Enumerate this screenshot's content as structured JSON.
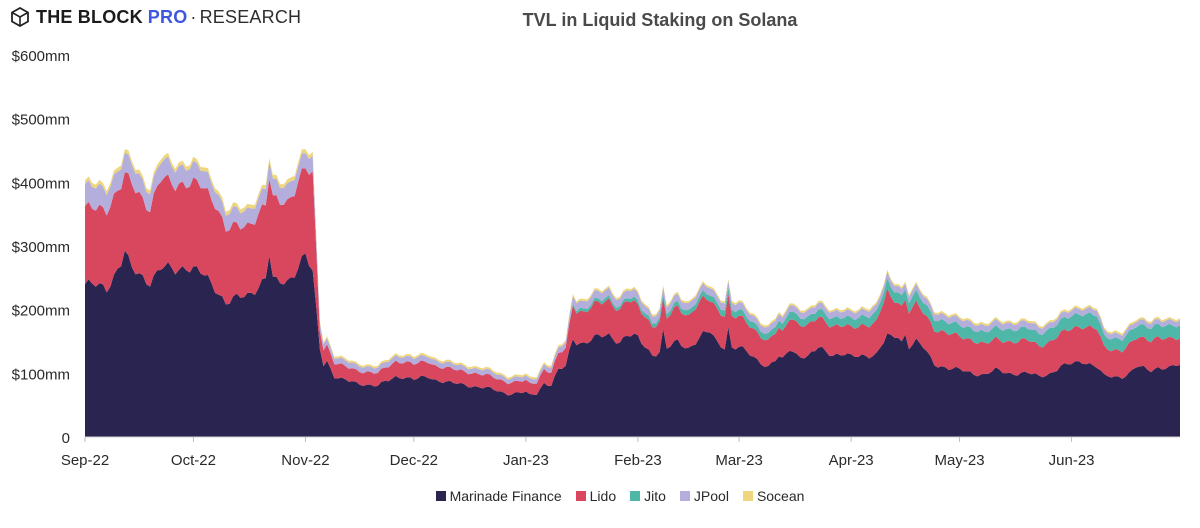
{
  "header": {
    "brand_main": "THE BLOCK",
    "brand_pro": "PRO",
    "brand_sep": "·",
    "brand_research": "RESEARCH",
    "logo_icon": "block-cube-icon"
  },
  "chart_data": {
    "type": "area",
    "stacked": true,
    "title": "TVL in Liquid Staking on Solana",
    "xlabel": "",
    "ylabel": "",
    "ylim": [
      0,
      600
    ],
    "yticks": [
      {
        "value": 0,
        "label": "0"
      },
      {
        "value": 100,
        "label": "$100mm"
      },
      {
        "value": 200,
        "label": "$200mm"
      },
      {
        "value": 300,
        "label": "$300mm"
      },
      {
        "value": 400,
        "label": "$400mm"
      },
      {
        "value": 500,
        "label": "$500mm"
      },
      {
        "value": 600,
        "label": "$600mm"
      }
    ],
    "grid": false,
    "legend_position": "bottom-center",
    "x_day_count": 303,
    "x_ticks": [
      {
        "label": "Sep-22",
        "day": 0
      },
      {
        "label": "Oct-22",
        "day": 30
      },
      {
        "label": "Nov-22",
        "day": 61
      },
      {
        "label": "Dec-22",
        "day": 91
      },
      {
        "label": "Jan-23",
        "day": 122
      },
      {
        "label": "Feb-23",
        "day": 153
      },
      {
        "label": "Mar-23",
        "day": 181
      },
      {
        "label": "Apr-23",
        "day": 212
      },
      {
        "label": "May-23",
        "day": 242
      },
      {
        "label": "Jun-23",
        "day": 273
      }
    ],
    "x": [
      0,
      6,
      11,
      13,
      18,
      21,
      25,
      28,
      32,
      36,
      39,
      45,
      50,
      53,
      56,
      61,
      63,
      65,
      66,
      67,
      69,
      71,
      75,
      81,
      86,
      88,
      91,
      95,
      97,
      101,
      111,
      117,
      122,
      123,
      125,
      127,
      129,
      131,
      133,
      135,
      136,
      138,
      141,
      145,
      148,
      150,
      153,
      157,
      161,
      164,
      167,
      169,
      171,
      173,
      175,
      178,
      181,
      184,
      189,
      192,
      193,
      195,
      197,
      200,
      203,
      207,
      210,
      212,
      215,
      219,
      222,
      223,
      225,
      227,
      230,
      232,
      235,
      239,
      242,
      246,
      249,
      252,
      256,
      261,
      264,
      267,
      270,
      273,
      276,
      280,
      282,
      284,
      287,
      289,
      291,
      295,
      297,
      300,
      302
    ],
    "series": [
      {
        "name": "Marinade Finance",
        "color": "#2a2450",
        "values": [
          240,
          234,
          285,
          262,
          245,
          265,
          262,
          270,
          257,
          235,
          212,
          222,
          250,
          242,
          245,
          285,
          255,
          140,
          115,
          120,
          95,
          90,
          85,
          80,
          95,
          95,
          90,
          95,
          90,
          85,
          77,
          68,
          70,
          65,
          68,
          85,
          82,
          105,
          110,
          155,
          150,
          148,
          155,
          160,
          150,
          160,
          155,
          130,
          138,
          150,
          140,
          150,
          160,
          165,
          148,
          140,
          140,
          130,
          110,
          125,
          120,
          140,
          130,
          125,
          140,
          130,
          130,
          125,
          128,
          130,
          158,
          155,
          160,
          140,
          150,
          140,
          115,
          108,
          105,
          100,
          98,
          105,
          100,
          100,
          95,
          100,
          110,
          115,
          120,
          110,
          95,
          95,
          95,
          100,
          110,
          105,
          110,
          108,
          112
        ],
        "peaks": {
          "11": 290,
          "51": 288,
          "160": 165,
          "178": 172,
          "227": 162
        }
      },
      {
        "name": "Lido",
        "color": "#d9475f",
        "values": [
          118,
          125,
          120,
          135,
          115,
          140,
          135,
          130,
          138,
          135,
          115,
          110,
          115,
          130,
          125,
          135,
          155,
          30,
          25,
          25,
          22,
          22,
          20,
          20,
          24,
          24,
          24,
          24,
          22,
          22,
          20,
          18,
          18,
          18,
          18,
          22,
          20,
          25,
          28,
          55,
          50,
          48,
          52,
          55,
          50,
          55,
          50,
          45,
          48,
          55,
          50,
          55,
          55,
          50,
          52,
          50,
          48,
          45,
          40,
          45,
          42,
          50,
          50,
          48,
          48,
          45,
          45,
          45,
          48,
          50,
          70,
          60,
          55,
          55,
          58,
          55,
          55,
          55,
          52,
          52,
          48,
          48,
          50,
          52,
          48,
          50,
          52,
          55,
          55,
          60,
          45,
          42,
          42,
          45,
          45,
          48,
          48,
          45,
          42
        ]
      },
      {
        "name": "Jito",
        "color": "#4fb7a7",
        "values": [
          0,
          0,
          0,
          0,
          0,
          0,
          0,
          0,
          0,
          0,
          0,
          0,
          0,
          0,
          0,
          0,
          0,
          0,
          0,
          0,
          0,
          0,
          0,
          0,
          0,
          0,
          0,
          0,
          0,
          0,
          0,
          0,
          0,
          0,
          0,
          0,
          0,
          0,
          0,
          3,
          4,
          5,
          5,
          5,
          5,
          5,
          6,
          6,
          7,
          7,
          8,
          8,
          9,
          9,
          9,
          10,
          10,
          10,
          10,
          11,
          11,
          12,
          12,
          12,
          12,
          13,
          13,
          14,
          14,
          15,
          16,
          16,
          16,
          16,
          17,
          17,
          17,
          17,
          18,
          18,
          18,
          18,
          19,
          19,
          19,
          20,
          20,
          20,
          20,
          21,
          18,
          18,
          18,
          19,
          19,
          20,
          20,
          20,
          20
        ]
      },
      {
        "name": "JPool",
        "color": "#b4aedc",
        "values": [
          35,
          32,
          30,
          30,
          28,
          28,
          28,
          28,
          26,
          26,
          25,
          24,
          26,
          26,
          26,
          24,
          24,
          12,
          10,
          10,
          9,
          9,
          9,
          8,
          9,
          9,
          9,
          9,
          9,
          8,
          8,
          7,
          7,
          7,
          7,
          8,
          8,
          9,
          9,
          12,
          12,
          12,
          12,
          12,
          12,
          12,
          12,
          11,
          11,
          11,
          11,
          11,
          11,
          11,
          11,
          11,
          11,
          10,
          10,
          10,
          10,
          10,
          10,
          10,
          10,
          10,
          10,
          10,
          10,
          10,
          10,
          10,
          10,
          10,
          10,
          10,
          10,
          10,
          10,
          10,
          10,
          10,
          10,
          10,
          10,
          9,
          9,
          9,
          9,
          9,
          8,
          8,
          8,
          8,
          8,
          8,
          8,
          8,
          8
        ]
      },
      {
        "name": "Socean",
        "color": "#eed67c",
        "values": [
          6,
          6,
          6,
          6,
          6,
          6,
          6,
          6,
          6,
          6,
          6,
          6,
          6,
          6,
          6,
          6,
          6,
          3,
          3,
          3,
          3,
          3,
          3,
          3,
          3,
          3,
          3,
          3,
          3,
          3,
          3,
          3,
          3,
          3,
          3,
          3,
          3,
          3,
          3,
          3,
          3,
          3,
          3,
          3,
          3,
          3,
          3,
          3,
          3,
          3,
          3,
          3,
          3,
          3,
          3,
          3,
          3,
          3,
          3,
          3,
          3,
          3,
          3,
          3,
          3,
          3,
          3,
          3,
          3,
          3,
          3,
          3,
          3,
          3,
          3,
          3,
          3,
          3,
          3,
          3,
          3,
          3,
          3,
          3,
          3,
          3,
          3,
          3,
          3,
          3,
          3,
          3,
          3,
          3,
          3,
          3,
          3,
          3,
          3
        ]
      }
    ]
  },
  "legend": {
    "items": [
      {
        "label": "Marinade Finance",
        "color": "#2a2450"
      },
      {
        "label": "Lido",
        "color": "#d9475f"
      },
      {
        "label": "Jito",
        "color": "#4fb7a7"
      },
      {
        "label": "JPool",
        "color": "#b4aedc"
      },
      {
        "label": "Socean",
        "color": "#eed67c"
      }
    ]
  }
}
